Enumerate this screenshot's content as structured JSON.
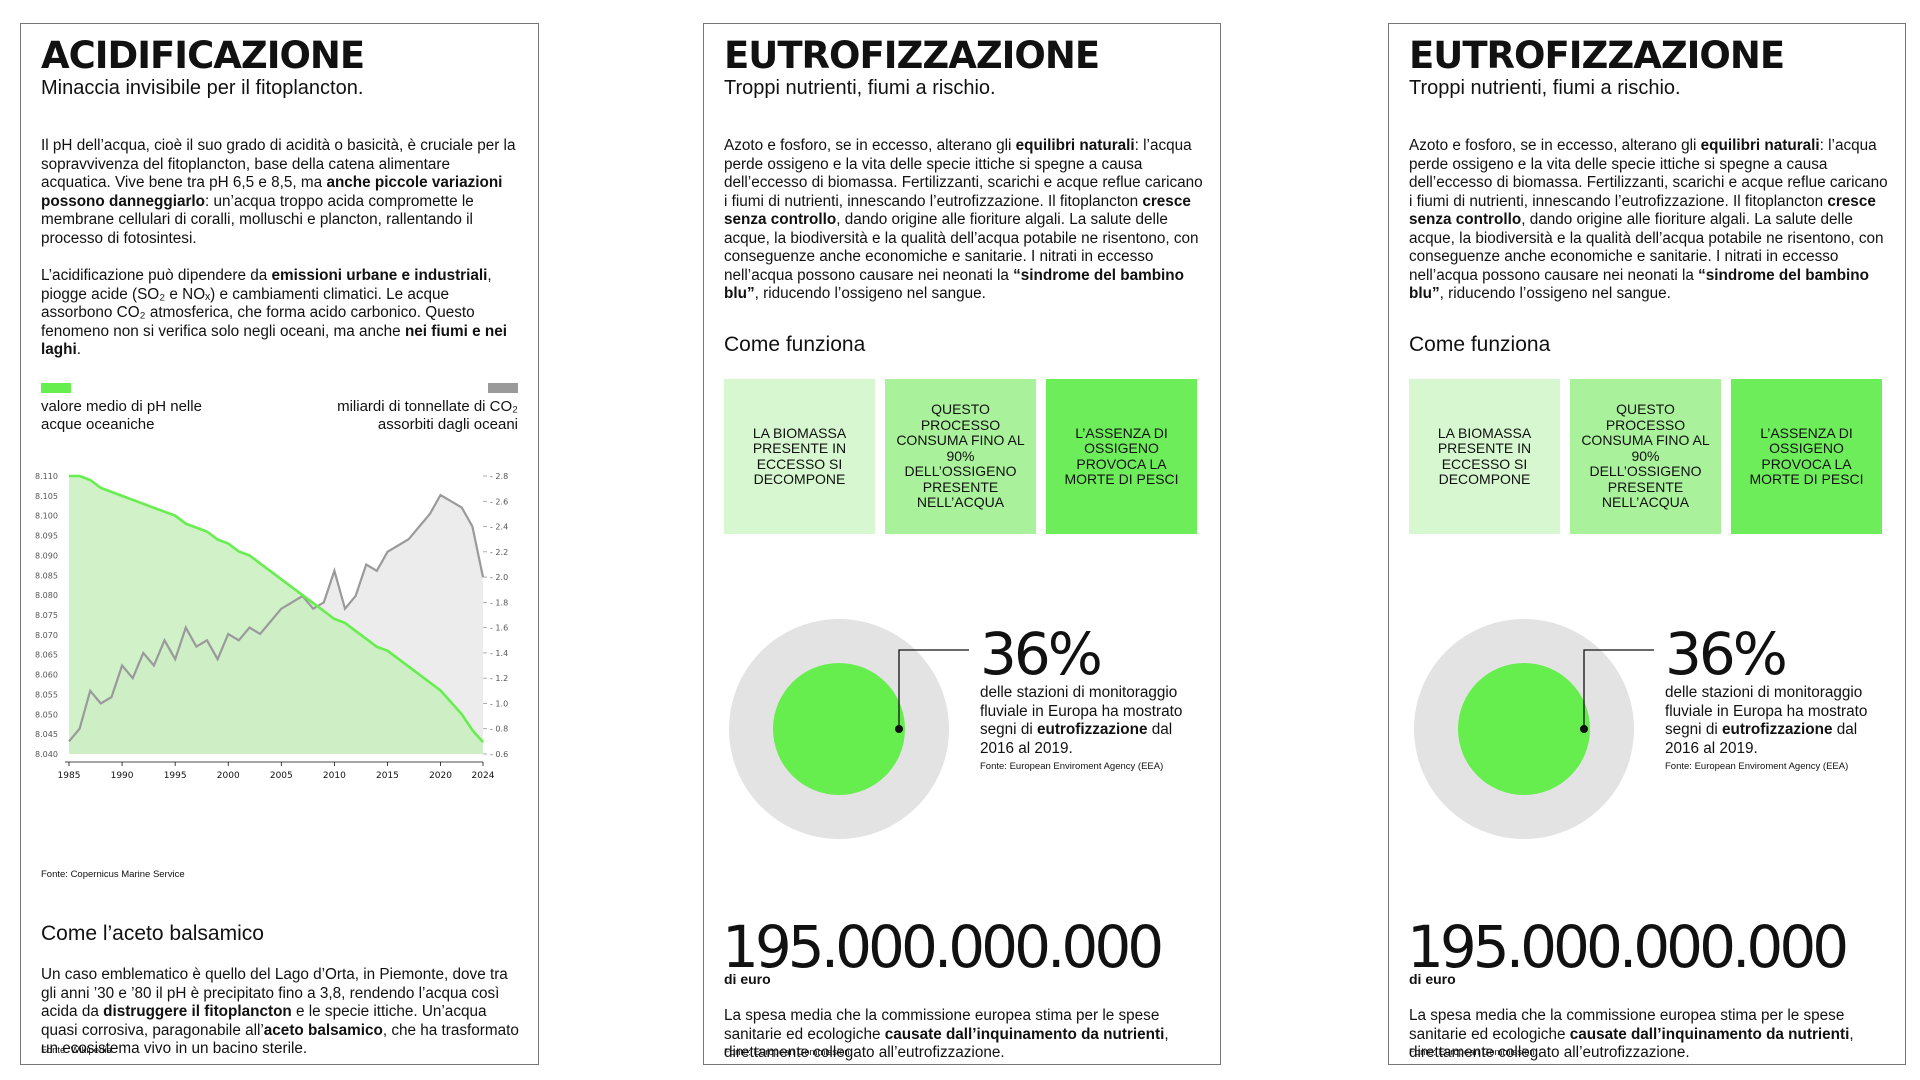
{
  "panel_left": {
    "title": "ACIDIFICAZIONE",
    "subtitle": "Minaccia invisibile per il fitoplancton.",
    "para1": [
      {
        "t": "Il pH dell’acqua, cioè il suo grado di acidità o basicità, è cruciale per la sopravvivenza del fitoplancton, base della catena alimentare acquatica. Vive bene tra pH 6,5 e 8,5, ma "
      },
      {
        "t": "anche piccole variazioni possono danneggiarlo",
        "b": true
      },
      {
        "t": ": un’acqua troppo acida compromette le membrane cellulari di coralli, molluschi e plancton, rallentando il processo di fotosintesi."
      }
    ],
    "para2": [
      {
        "t": "L’acidificazione può dipendere da "
      },
      {
        "t": "emissioni urbane e industriali",
        "b": true
      },
      {
        "t": ", piogge acide (SO₂ e NOₓ) e cambiamenti climatici. Le acque assorbono CO₂ atmosferica, che forma acido carbonico. Questo fenomeno non si verifica solo negli oceani, ma anche "
      },
      {
        "t": "nei fiumi e nei laghi",
        "b": true
      },
      {
        "t": "."
      }
    ],
    "legend_left": "valore medio di pH nelle acque oceaniche",
    "legend_right": "miliardi di tonnellate di CO₂ assorbiti dagli oceani",
    "chart_source": "Fonte: Copernicus Marine Service",
    "section_title": "Come l’aceto balsamico",
    "para3": [
      {
        "t": "Un caso emblematico è quello del Lago d’Orta, in Piemonte, dove tra gli anni ’30 e ’80 il pH è precipitato fino a 3,8, rendendo l’acqua così acida da "
      },
      {
        "t": "distruggere il fitoplancton",
        "b": true
      },
      {
        "t": " e le specie ittiche. Un’acqua quasi corrosiva, paragonabile all’"
      },
      {
        "t": "aceto balsamico",
        "b": true
      },
      {
        "t": ", che ha trasformato un ecosistema vivo in un bacino sterile."
      }
    ],
    "source": "Fonte: Wikipedia"
  },
  "panel_eutro": {
    "title": "EUTROFIZZAZIONE",
    "subtitle": "Troppi nutrienti, fiumi a rischio.",
    "para1": [
      {
        "t": "Azoto e fosforo, se in eccesso, alterano gli "
      },
      {
        "t": "equilibri naturali",
        "b": true
      },
      {
        "t": ": l’acqua perde ossigeno e la vita delle specie ittiche si spegne a causa dell’eccesso di biomassa. Fertilizzanti, scarichi e acque reflue caricano i fiumi di nutrienti, innescando l’eutrofizzazione. Il fitoplancton "
      },
      {
        "t": "cresce senza controllo",
        "b": true
      },
      {
        "t": ", dando origine alle fioriture algali. La salute delle acque, la biodiversità e la qualità dell’acqua potabile ne risentono, con conseguenze anche economiche e sanitarie. I nitrati in eccesso nell’acqua possono causare nei neonati la "
      },
      {
        "t": "“sindrome del bambino blu”",
        "b": true
      },
      {
        "t": ", riducendo l’ossigeno nel sangue."
      }
    ],
    "how_title": "Come funziona",
    "boxes": [
      "LA BIOMASSA PRESENTE IN ECCESSO SI DECOMPONE",
      "QUESTO PROCESSO CONSUMA FINO AL 90% DELL’OSSIGENO PRESENTE NELL’ACQUA",
      "L’ASSENZA DI OSSIGENO PROVOCA LA MORTE DI PESCI"
    ],
    "box_colors": [
      "#d6f7cf",
      "#a9f29b",
      "#6eed5a"
    ],
    "stat_value": "36%",
    "stat_text": [
      {
        "t": "delle stazioni di monitoraggio fluviale in Europa ha mostrato segni di "
      },
      {
        "t": "eutrofizzazione",
        "b": true
      },
      {
        "t": " dal 2016 al 2019."
      }
    ],
    "stat_source": "Fonte: European Enviroment Agency (EEA)",
    "stat_fraction": 0.36,
    "big_number": "195.000.000.000",
    "big_unit": "di euro",
    "cost_text": [
      {
        "t": "La spesa media che la commissione europea stima per le spese sanitarie ed ecologiche "
      },
      {
        "t": "causate dall’inquinamento da nutrienti",
        "b": true
      },
      {
        "t": ", direttamente collegato all’eutrofizzazione."
      }
    ],
    "cost_source": "Fonte: European Commission"
  },
  "colors": {
    "green": "#66ee4f",
    "green_fill": "#c9efbf",
    "grey": "#9a9a9a",
    "grey_fill": "#ececec",
    "ring": "#e3e3e3"
  },
  "chart_data": {
    "type": "area",
    "x": [
      1985,
      1986,
      1987,
      1988,
      1989,
      1990,
      1991,
      1992,
      1993,
      1994,
      1995,
      1996,
      1997,
      1998,
      1999,
      2000,
      2001,
      2002,
      2003,
      2004,
      2005,
      2006,
      2007,
      2008,
      2009,
      2010,
      2011,
      2012,
      2013,
      2014,
      2015,
      2016,
      2017,
      2018,
      2019,
      2020,
      2021,
      2022,
      2023,
      2024
    ],
    "x_ticks": [
      "1985",
      "1990",
      "1995",
      "2000",
      "2005",
      "2010",
      "2015",
      "2020",
      "2024"
    ],
    "series": [
      {
        "name": "valore medio di pH nelle acque oceaniche",
        "axis": "left",
        "values": [
          8.11,
          8.11,
          8.109,
          8.107,
          8.106,
          8.105,
          8.104,
          8.103,
          8.102,
          8.101,
          8.1,
          8.098,
          8.097,
          8.096,
          8.094,
          8.093,
          8.091,
          8.09,
          8.088,
          8.086,
          8.084,
          8.082,
          8.08,
          8.078,
          8.076,
          8.074,
          8.073,
          8.071,
          8.069,
          8.067,
          8.066,
          8.064,
          8.062,
          8.06,
          8.058,
          8.056,
          8.053,
          8.05,
          8.046,
          8.043
        ]
      },
      {
        "name": "miliardi di tonnellate di CO₂ assorbiti dagli oceani",
        "axis": "right",
        "values": [
          0.7,
          0.8,
          1.1,
          1.0,
          1.05,
          1.3,
          1.2,
          1.4,
          1.3,
          1.5,
          1.35,
          1.6,
          1.45,
          1.5,
          1.35,
          1.55,
          1.5,
          1.6,
          1.55,
          1.65,
          1.75,
          1.8,
          1.85,
          1.75,
          1.8,
          2.05,
          1.75,
          1.85,
          2.1,
          2.05,
          2.2,
          2.25,
          2.3,
          2.4,
          2.5,
          2.65,
          2.6,
          2.55,
          2.4,
          2.0
        ]
      }
    ],
    "y_left_ticks": [
      "8.110",
      "8.105",
      "8.100",
      "8.095",
      "8.090",
      "8.085",
      "8.080",
      "8.075",
      "8.070",
      "8.065",
      "8.060",
      "8.055",
      "8.050",
      "8.045",
      "8.040"
    ],
    "y_right_ticks": [
      "2.8",
      "2.6",
      "2.4",
      "2.2",
      "2.0",
      "1.8",
      "1.6",
      "1.4",
      "1.2",
      "1.0",
      "0.8",
      "0.6"
    ],
    "ylim_left": [
      8.04,
      8.11
    ],
    "ylim_right": [
      0.6,
      2.8
    ]
  }
}
